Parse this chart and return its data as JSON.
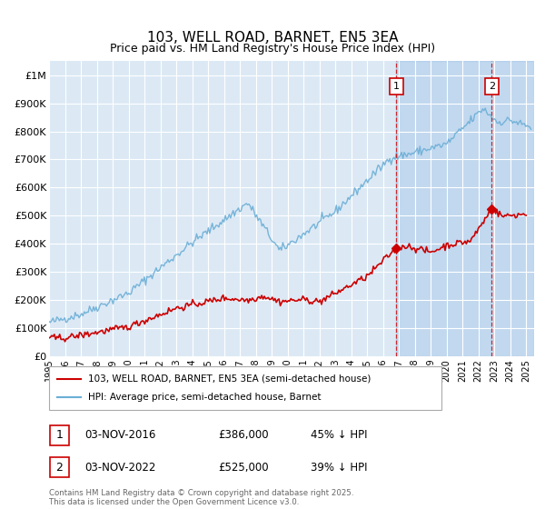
{
  "title": "103, WELL ROAD, BARNET, EN5 3EA",
  "subtitle": "Price paid vs. HM Land Registry's House Price Index (HPI)",
  "ylabel_ticks": [
    "£0",
    "£100K",
    "£200K",
    "£300K",
    "£400K",
    "£500K",
    "£600K",
    "£700K",
    "£800K",
    "£900K",
    "£1M"
  ],
  "ytick_values": [
    0,
    100000,
    200000,
    300000,
    400000,
    500000,
    600000,
    700000,
    800000,
    900000,
    1000000
  ],
  "ylim": [
    0,
    1050000
  ],
  "xlim_start": 1995.0,
  "xlim_end": 2025.5,
  "hpi_color": "#6baed6",
  "price_color": "#cc0000",
  "dashed_color": "#cc0000",
  "background_color": "#dce9f5",
  "shade_color": "#dce9f5",
  "sale1_x": 2016.84,
  "sale1_y": 386000,
  "sale2_x": 2022.84,
  "sale2_y": 525000,
  "legend_price_label": "103, WELL ROAD, BARNET, EN5 3EA (semi-detached house)",
  "legend_hpi_label": "HPI: Average price, semi-detached house, Barnet",
  "table_row1": [
    "1",
    "03-NOV-2016",
    "£386,000",
    "45% ↓ HPI"
  ],
  "table_row2": [
    "2",
    "03-NOV-2022",
    "£525,000",
    "39% ↓ HPI"
  ],
  "footer": "Contains HM Land Registry data © Crown copyright and database right 2025.\nThis data is licensed under the Open Government Licence v3.0."
}
